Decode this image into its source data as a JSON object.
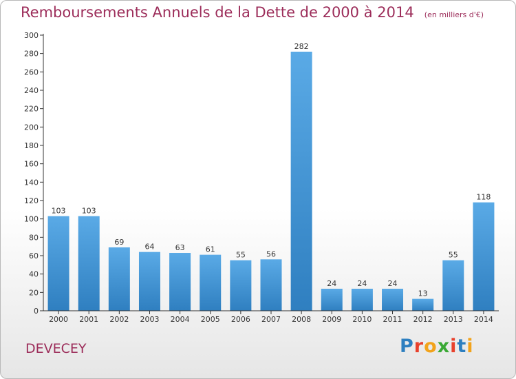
{
  "header": {
    "title": "Remboursements Annuels de la Dette de 2000 à 2014",
    "subtitle": "(en milliers d'€)"
  },
  "footer": {
    "commune": "DEVECEY",
    "logo_text": "Proxiti",
    "logo_colors": [
      "#2d7fc0",
      "#e8412c",
      "#f2a31b",
      "#3aa935",
      "#e8412c",
      "#2d7fc0",
      "#f2a31b"
    ]
  },
  "chart_data": {
    "type": "bar",
    "categories": [
      "2000",
      "2001",
      "2002",
      "2003",
      "2004",
      "2005",
      "2006",
      "2007",
      "2008",
      "2009",
      "2010",
      "2011",
      "2012",
      "2013",
      "2014"
    ],
    "values": [
      103,
      103,
      69,
      64,
      63,
      61,
      55,
      56,
      282,
      24,
      24,
      24,
      13,
      55,
      118
    ],
    "ylim": [
      0,
      300
    ],
    "yticks": [
      0,
      20,
      40,
      60,
      80,
      100,
      120,
      140,
      160,
      180,
      200,
      220,
      240,
      260,
      280,
      300
    ],
    "grid": false,
    "legend": "none",
    "bar_color_top": "#5aaae6",
    "bar_color_bottom": "#2f7fc0",
    "text_color": "#333333",
    "axis_color": "#333333"
  }
}
